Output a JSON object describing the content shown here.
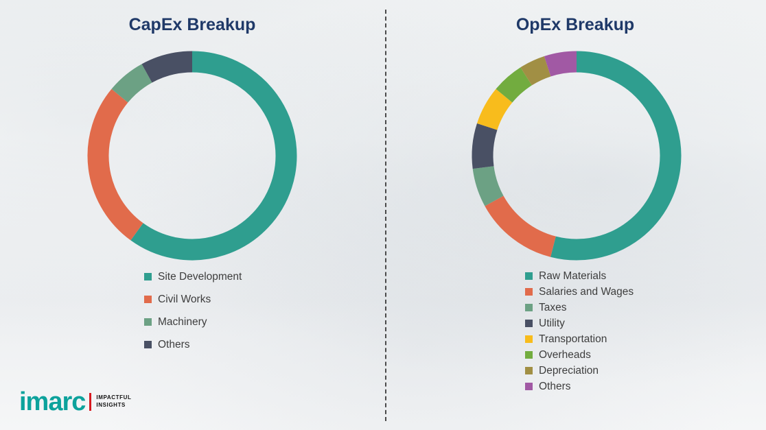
{
  "logo": {
    "name": "imarc",
    "tagline_line1": "IMPACTFUL",
    "tagline_line2": "INSIGHTS"
  },
  "chart_data": [
    {
      "type": "pie",
      "subtype": "donut",
      "title": "CapEx Breakup",
      "title_color": "#1F3968",
      "legend_position": "bottom",
      "labels": [
        "Site Development",
        "Civil Works",
        "Machinery",
        "Others"
      ],
      "values": [
        60,
        26,
        6,
        8
      ],
      "colors": [
        "#2F9E8F",
        "#E16B4B",
        "#6CA184",
        "#495064"
      ]
    },
    {
      "type": "pie",
      "subtype": "donut",
      "title": "OpEx Breakup",
      "title_color": "#1F3968",
      "legend_position": "bottom",
      "labels": [
        "Raw Materials",
        "Salaries and Wages",
        "Taxes",
        "Utility",
        "Transportation",
        "Overheads",
        "Depreciation",
        "Others"
      ],
      "values": [
        54,
        13,
        6,
        7,
        6,
        5,
        4,
        5
      ],
      "colors": [
        "#2F9E8F",
        "#E16B4B",
        "#6CA184",
        "#495064",
        "#F8BC1C",
        "#72AC3F",
        "#A18F44",
        "#A159A4"
      ]
    }
  ]
}
